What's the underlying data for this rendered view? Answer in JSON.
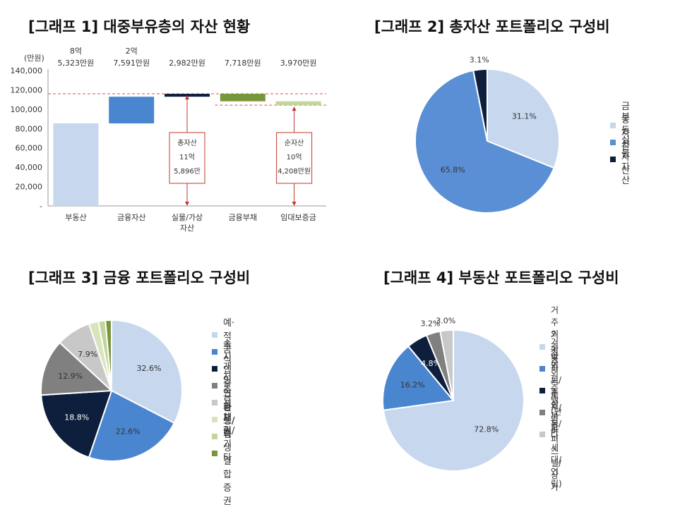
{
  "chart_data": [
    {
      "type": "bar",
      "subtype": "waterfall",
      "title": "[그래프 1] 대중부유층의 자산 현황",
      "ylabel": "(만원)",
      "ylim": [
        0,
        140000
      ],
      "yticks": [
        "140,000",
        "120,000",
        "100,000",
        "80,000",
        "60,000",
        "40,000",
        "20,000",
        "-"
      ],
      "categories": [
        "부동산",
        "금융자산",
        "실물/가상 자산",
        "금융부채",
        "임대보증금"
      ],
      "top_labels": [
        [
          "8억",
          "5,323만원"
        ],
        [
          "2억",
          "7,591만원"
        ],
        [
          "",
          "2,982만원"
        ],
        [
          "",
          "7,718만원"
        ],
        [
          "",
          "3,970만원"
        ]
      ],
      "series": [
        {
          "values_from": [
            0,
            85323,
            112914,
            115896,
            108178
          ],
          "values_to": [
            85323,
            112914,
            115896,
            108178,
            104208
          ],
          "colors": [
            "#c6d7ee",
            "#4a86cf",
            "#0d1f3c",
            "#77963b",
            "#c2d69b"
          ]
        }
      ],
      "annotations": [
        {
          "text": [
            "총자산",
            "11억",
            "5,896만"
          ]
        },
        {
          "text": [
            "순자산",
            "10억",
            "4,208만원"
          ]
        }
      ]
    },
    {
      "type": "pie",
      "title": "[그래프 2] 총자산 포트폴리오 구성비",
      "labels": [
        "금융자산",
        "부동산자산",
        "실물자산"
      ],
      "values": [
        31.1,
        65.8,
        3.1
      ],
      "value_labels": [
        "31.1%",
        "65.8%",
        "3.1%"
      ],
      "colors": [
        "#c6d7ee",
        "#5a8fd6",
        "#0d1f3c"
      ]
    },
    {
      "type": "pie",
      "title": "[그래프 3] 금융 포트폴리오 구성비",
      "labels": [
        "예·적금",
        "주식",
        "수시입출금",
        "개인연금",
        "저축성 보험",
        "펀드/랩",
        "채권/기타",
        "파생/파생결합증권"
      ],
      "values": [
        32.6,
        22.6,
        18.8,
        12.9,
        7.9,
        2.2,
        1.6,
        1.4
      ],
      "value_labels": [
        "32.6%",
        "22.6%",
        "18.8%",
        "12.9%",
        "7.9%",
        "",
        "",
        ""
      ],
      "colors": [
        "#c6d7ee",
        "#4a86cf",
        "#0d1f3c",
        "#808080",
        "#c8c8c8",
        "#d8e4bc",
        "#c2d69b",
        "#77963b"
      ]
    },
    {
      "type": "pie",
      "title": "[그래프 4] 부동산 포트폴리오 구성비",
      "labels": [
        "거주용",
        "거주 외_아파트/주상복합",
        "거주 외_토지/임야",
        "거주 외_주택(단독/다세대/연립)",
        "거주 외_오피스텔/상가"
      ],
      "values": [
        72.8,
        16.2,
        4.8,
        3.2,
        3.0
      ],
      "value_labels": [
        "72.8%",
        "16.2%",
        "4.8%",
        "3.2%",
        "3.0%"
      ],
      "colors": [
        "#c6d7ee",
        "#4a86cf",
        "#0d1f3c",
        "#808080",
        "#c8c8c8"
      ]
    }
  ]
}
